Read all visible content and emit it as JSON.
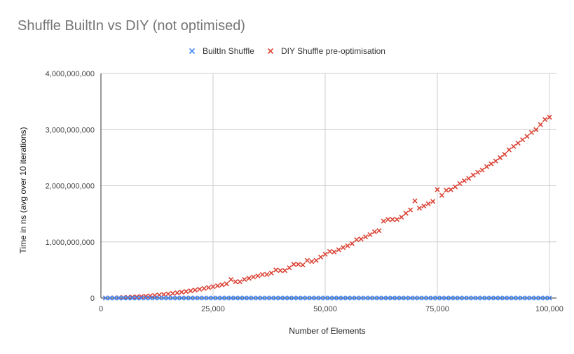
{
  "chart_data": {
    "type": "scatter",
    "title": "Shuffle BuiltIn vs DIY (not optimised)",
    "xlabel": "Number of Elements",
    "ylabel": "Time in ns (avg over 10 iterations)",
    "xlim": [
      0,
      100000
    ],
    "ylim": [
      0,
      4000000000
    ],
    "x_ticks": [
      "0",
      "25,000",
      "50,000",
      "75,000",
      "100,000"
    ],
    "y_ticks": [
      "0",
      "1,000,000,000",
      "2,000,000,000",
      "3,000,000,000",
      "4,000,000,000"
    ],
    "grid": true,
    "legend_position": "top",
    "marker": "x",
    "colors": {
      "builtin": "#4285F4",
      "diy": "#DB4437"
    },
    "series": [
      {
        "name": "BuiltIn Shuffle",
        "x": [
          1000,
          2000,
          3000,
          4000,
          5000,
          6000,
          7000,
          8000,
          9000,
          10000,
          11000,
          12000,
          13000,
          14000,
          15000,
          16000,
          17000,
          18000,
          19000,
          20000,
          21000,
          22000,
          23000,
          24000,
          25000,
          26000,
          27000,
          28000,
          29000,
          30000,
          31000,
          32000,
          33000,
          34000,
          35000,
          36000,
          37000,
          38000,
          39000,
          40000,
          41000,
          42000,
          43000,
          44000,
          45000,
          46000,
          47000,
          48000,
          49000,
          50000,
          51000,
          52000,
          53000,
          54000,
          55000,
          56000,
          57000,
          58000,
          59000,
          60000,
          61000,
          62000,
          63000,
          64000,
          65000,
          66000,
          67000,
          68000,
          69000,
          70000,
          71000,
          72000,
          73000,
          74000,
          75000,
          76000,
          77000,
          78000,
          79000,
          80000,
          81000,
          82000,
          83000,
          84000,
          85000,
          86000,
          87000,
          88000,
          89000,
          90000,
          91000,
          92000,
          93000,
          94000,
          95000,
          96000,
          97000,
          98000,
          99000,
          100000
        ],
        "y": [
          0,
          0,
          0,
          0,
          0,
          0,
          0,
          0,
          0,
          0,
          0,
          0,
          0,
          0,
          0,
          0,
          0,
          0,
          0,
          0,
          0,
          0,
          0,
          0,
          0,
          0,
          0,
          0,
          0,
          0,
          0,
          0,
          0,
          0,
          0,
          0,
          0,
          0,
          0,
          0,
          0,
          0,
          0,
          0,
          0,
          0,
          0,
          0,
          0,
          0,
          0,
          0,
          0,
          0,
          0,
          0,
          0,
          0,
          0,
          0,
          0,
          0,
          0,
          0,
          0,
          0,
          0,
          0,
          0,
          0,
          0,
          0,
          0,
          0,
          0,
          0,
          0,
          0,
          0,
          0,
          0,
          0,
          0,
          0,
          0,
          0,
          0,
          0,
          0,
          0,
          0,
          0,
          0,
          0,
          0,
          0,
          0,
          0,
          0,
          0
        ]
      },
      {
        "name": "DIY Shuffle pre-optimisation",
        "x": [
          1000,
          2000,
          3000,
          4000,
          5000,
          6000,
          7000,
          8000,
          9000,
          10000,
          11000,
          12000,
          13000,
          14000,
          15000,
          16000,
          17000,
          18000,
          19000,
          20000,
          21000,
          22000,
          23000,
          24000,
          25000,
          26000,
          27000,
          28000,
          29000,
          30000,
          31000,
          32000,
          33000,
          34000,
          35000,
          36000,
          37000,
          38000,
          39000,
          40000,
          41000,
          42000,
          43000,
          44000,
          45000,
          46000,
          47000,
          48000,
          49000,
          50000,
          51000,
          52000,
          53000,
          54000,
          55000,
          56000,
          57000,
          58000,
          59000,
          60000,
          61000,
          62000,
          63000,
          64000,
          65000,
          66000,
          67000,
          68000,
          69000,
          70000,
          71000,
          72000,
          73000,
          74000,
          75000,
          76000,
          77000,
          78000,
          79000,
          80000,
          81000,
          82000,
          83000,
          84000,
          85000,
          86000,
          87000,
          88000,
          89000,
          90000,
          91000,
          92000,
          93000,
          94000,
          95000,
          96000,
          97000,
          98000,
          99000,
          100000
        ],
        "y": [
          300000,
          1300000,
          2900000,
          5200000,
          8100000,
          11700000,
          15800000,
          20700000,
          26200000,
          32300000,
          39100000,
          46500000,
          54600000,
          63300000,
          72700000,
          82700000,
          93400000,
          104700000,
          116700000,
          129300000,
          142500000,
          156400000,
          171000000,
          186200000,
          202000000,
          218500000,
          235700000,
          253400000,
          330000000,
          290800000,
          290000000,
          331000000,
          352000000,
          374000000,
          395000000,
          418000000,
          420000000,
          444000000,
          500000000,
          490000000,
          490000000,
          540000000,
          600000000,
          600000000,
          590000000,
          670000000,
          650000000,
          670000000,
          730000000,
          780000000,
          830000000,
          820000000,
          860000000,
          900000000,
          930000000,
          970000000,
          1040000000,
          1050000000,
          1090000000,
          1130000000,
          1180000000,
          1200000000,
          1370000000,
          1400000000,
          1400000000,
          1400000000,
          1440000000,
          1510000000,
          1570000000,
          1730000000,
          1600000000,
          1640000000,
          1680000000,
          1720000000,
          1930000000,
          1830000000,
          1920000000,
          1930000000,
          1980000000,
          2040000000,
          2090000000,
          2130000000,
          2190000000,
          2240000000,
          2280000000,
          2340000000,
          2390000000,
          2440000000,
          2500000000,
          2560000000,
          2640000000,
          2700000000,
          2760000000,
          2820000000,
          2880000000,
          2950000000,
          3000000000,
          3090000000,
          3180000000,
          3220000000
        ]
      }
    ]
  }
}
